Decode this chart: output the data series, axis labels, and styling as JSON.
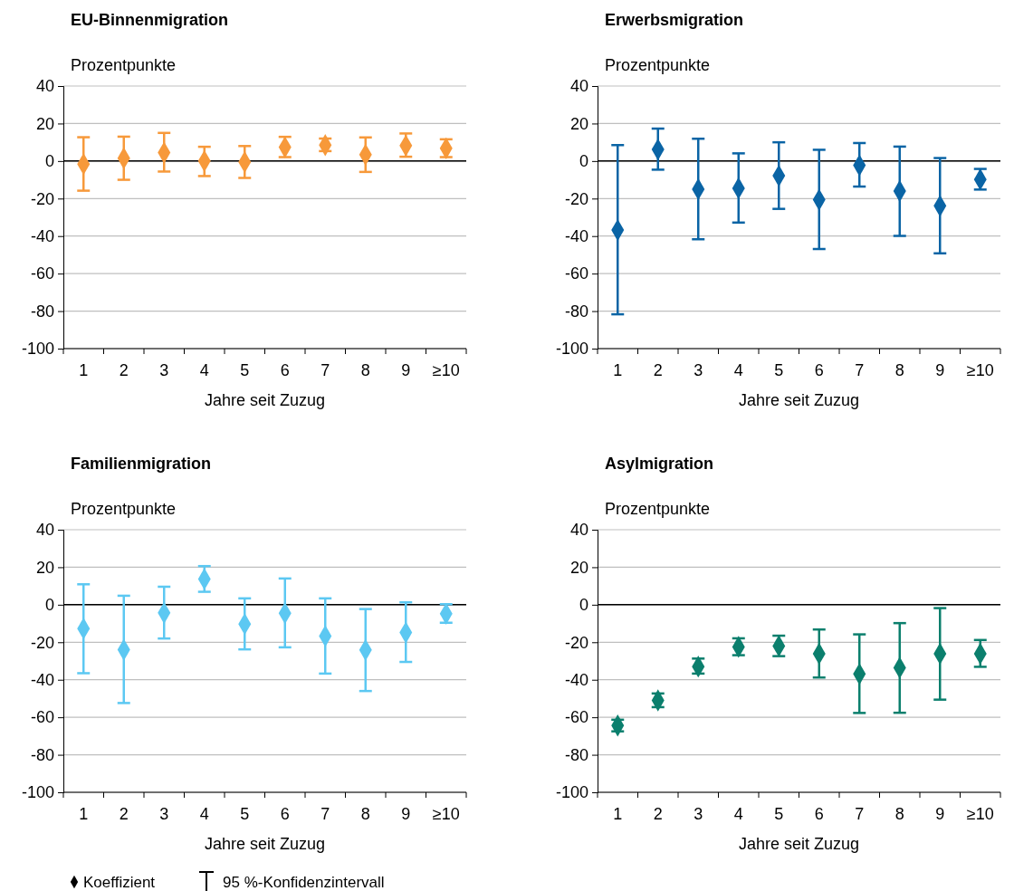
{
  "chart_data": [
    {
      "type": "scatter",
      "title": "EU-Binnenmigration",
      "ylabel": "Prozentpunkte",
      "xlabel": "Jahre seit Zuzug",
      "categories": [
        "1",
        "2",
        "3",
        "4",
        "5",
        "6",
        "7",
        "8",
        "9",
        "≥10"
      ],
      "ylim": [
        -100,
        40
      ],
      "yticks": [
        -100,
        -80,
        -60,
        -40,
        -20,
        0,
        20,
        40
      ],
      "grid": "y",
      "marker": "diamond",
      "series": [
        {
          "color": "#f7993a",
          "values": [
            -1.6,
            1.5,
            4.5,
            0,
            -0.5,
            7.4,
            8.5,
            3.4,
            8.2,
            6.8
          ],
          "errors": [
            [
              -15.8,
              12.7
            ],
            [
              -10,
              13
            ],
            [
              -5.6,
              15
            ],
            [
              -8,
              7.6
            ],
            [
              -9,
              8
            ],
            [
              2.1,
              12.9
            ],
            [
              5.3,
              12
            ],
            [
              -5.8,
              12.6
            ],
            [
              2.3,
              14.7
            ],
            [
              2.1,
              11.6
            ]
          ]
        }
      ]
    },
    {
      "type": "scatter",
      "title": "Erwerbsmigration",
      "ylabel": "Prozentpunkte",
      "xlabel": "Jahre seit Zuzug",
      "categories": [
        "1",
        "2",
        "3",
        "4",
        "5",
        "6",
        "7",
        "8",
        "9",
        "≥10"
      ],
      "ylim": [
        -100,
        40
      ],
      "yticks": [
        -100,
        -80,
        -60,
        -40,
        -20,
        0,
        20,
        40
      ],
      "grid": "y",
      "marker": "diamond",
      "series": [
        {
          "color": "#0a64a5",
          "values": [
            -36.8,
            6.2,
            -15,
            -14.5,
            -7.8,
            -20.6,
            -2.3,
            -16,
            -23.9,
            -9.8
          ],
          "errors": [
            [
              -81.7,
              8.5
            ],
            [
              -4.6,
              17.3
            ],
            [
              -41.7,
              11.9
            ],
            [
              -32.8,
              4.1
            ],
            [
              -25.5,
              10
            ],
            [
              -46.9,
              6
            ],
            [
              -13.6,
              9.6
            ],
            [
              -39.9,
              7.7
            ],
            [
              -49.2,
              1.6
            ],
            [
              -15.2,
              -4.2
            ]
          ]
        }
      ]
    },
    {
      "type": "scatter",
      "title": "Familienmigration",
      "ylabel": "Prozentpunkte",
      "xlabel": "Jahre seit Zuzug",
      "categories": [
        "1",
        "2",
        "3",
        "4",
        "5",
        "6",
        "7",
        "8",
        "9",
        "≥10"
      ],
      "ylim": [
        -100,
        40
      ],
      "yticks": [
        -100,
        -80,
        -60,
        -40,
        -20,
        0,
        20,
        40
      ],
      "grid": "y",
      "marker": "diamond",
      "annotations": [
        "Koeffizient",
        "95 %-Konfidenzintervall"
      ],
      "series": [
        {
          "color": "#5cc8f2",
          "values": [
            -12.7,
            -24,
            -4.3,
            13.7,
            -10.3,
            -4.5,
            -16.7,
            -24.1,
            -14.8,
            -4.8
          ],
          "errors": [
            [
              -36.5,
              10.9
            ],
            [
              -52.4,
              4.8
            ],
            [
              -18,
              9.6
            ],
            [
              6.9,
              20.6
            ],
            [
              -23.8,
              3.4
            ],
            [
              -22.7,
              14
            ],
            [
              -36.7,
              3.4
            ],
            [
              -46,
              -2.3
            ],
            [
              -30.5,
              1.3
            ],
            [
              -9.6,
              0.3
            ]
          ]
        }
      ]
    },
    {
      "type": "scatter",
      "title": "Asylmigration",
      "ylabel": "Prozentpunkte",
      "xlabel": "Jahre seit Zuzug",
      "categories": [
        "1",
        "2",
        "3",
        "4",
        "5",
        "6",
        "7",
        "8",
        "9",
        "≥10"
      ],
      "ylim": [
        -100,
        40
      ],
      "yticks": [
        -100,
        -80,
        -60,
        -40,
        -20,
        0,
        20,
        40
      ],
      "grid": "y",
      "marker": "diamond",
      "series": [
        {
          "color": "#0b7f6d",
          "values": [
            -64.4,
            -51,
            -33,
            -22.5,
            -22,
            -26.1,
            -36.9,
            -33.6,
            -26.1,
            -26.1
          ],
          "errors": [
            [
              -67.5,
              -61.3
            ],
            [
              -54.6,
              -47.3
            ],
            [
              -36.7,
              -28.7
            ],
            [
              -26.9,
              -17.9
            ],
            [
              -27.4,
              -16.5
            ],
            [
              -38.8,
              -13.2
            ],
            [
              -57.7,
              -15.8
            ],
            [
              -57.6,
              -9.8
            ],
            [
              -50.6,
              -1.8
            ],
            [
              -33.1,
              -18.8
            ]
          ]
        }
      ]
    }
  ]
}
